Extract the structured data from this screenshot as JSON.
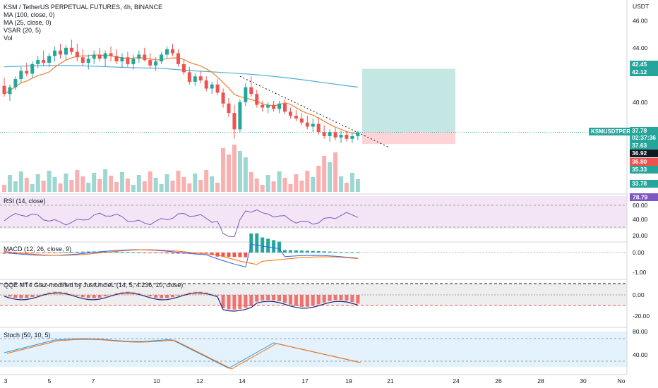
{
  "legend": {
    "title": "KSM / TetherUS PERPETUAL FUTURES, 4h, BINANCE",
    "ma100": "MA (100, close, 0)",
    "ma25": "MA (25, close, 0)",
    "vsar": "VSAR (20, 5)",
    "vol": "Vol"
  },
  "panes": {
    "rsi": "RSI (14, close)",
    "macd": "MACD (12, 26, close, 9)",
    "qqe": "QQE MT4 Glaz-modified by JustUncleL (14, 5, 4.236, 10, close)",
    "stoch": "Stoch (50, 10, 5)"
  },
  "price_axis": {
    "unit": "USDT",
    "ticks": [
      "46.00",
      "44.00",
      "40.00"
    ],
    "tags": [
      {
        "text": "42.45",
        "color": "#26a69a"
      },
      {
        "text": "42.12",
        "color": "#26a69a"
      },
      {
        "text": "37.78",
        "color": "#26a69a"
      },
      {
        "text": "02:37:36",
        "color": "#26a69a"
      },
      {
        "text": "37.63",
        "color": "#26a69a"
      },
      {
        "text": "36.92",
        "color": "#131722"
      },
      {
        "text": "36.80",
        "color": "#ef5350"
      },
      {
        "text": "35.33",
        "color": "#26a69a"
      },
      {
        "text": "33.78",
        "color": "#26a69a"
      }
    ],
    "symbol_tag": "KSMUSDTPERP"
  },
  "rsi_axis": {
    "ticks": [
      "60.00",
      "40.00",
      "20.00"
    ],
    "tag": "78.79"
  },
  "macd_axis": {
    "ticks": [
      "0.00",
      "-1.00"
    ]
  },
  "qqe_axis": {
    "ticks": [
      "0.00",
      "-20.00"
    ]
  },
  "stoch_axis": {
    "ticks": [
      "80.00",
      "40.00"
    ]
  },
  "time_axis": {
    "ticks": [
      "3",
      "5",
      "7",
      "10",
      "12",
      "14",
      "17",
      "19",
      "21",
      "24",
      "26",
      "28",
      "30",
      "No"
    ]
  },
  "colors": {
    "up": "#26a69a",
    "down": "#ef5350",
    "ma100": "#4fb0d4",
    "ma25": "#f57c2e",
    "rsi_bg": "#f3e5f5",
    "stoch_bg": "#e3f2fd",
    "target_zone": "#b2dfdb",
    "stop_zone": "#ffcdd2"
  },
  "chart_data": {
    "type": "candlestick",
    "price_range": [
      33.5,
      47
    ],
    "candles": [
      [
        41.2,
        41.8,
        40.4,
        40.6
      ],
      [
        40.6,
        41.3,
        40.1,
        41.1
      ],
      [
        41.1,
        41.9,
        40.9,
        41.7
      ],
      [
        41.7,
        42.6,
        41.4,
        42.3
      ],
      [
        42.3,
        42.9,
        41.9,
        42.1
      ],
      [
        42.1,
        43.0,
        41.8,
        42.8
      ],
      [
        42.8,
        43.4,
        42.5,
        43.1
      ],
      [
        43.1,
        43.8,
        42.7,
        42.9
      ],
      [
        42.9,
        43.6,
        42.6,
        43.4
      ],
      [
        43.4,
        44.1,
        43.0,
        43.8
      ],
      [
        43.8,
        44.3,
        43.2,
        43.5
      ],
      [
        43.5,
        44.2,
        43.1,
        44.0
      ],
      [
        44.0,
        44.6,
        43.5,
        43.7
      ],
      [
        43.7,
        44.3,
        43.0,
        43.3
      ],
      [
        43.3,
        43.9,
        42.7,
        42.9
      ],
      [
        42.9,
        43.5,
        42.4,
        43.2
      ],
      [
        43.2,
        43.8,
        42.8,
        43.5
      ],
      [
        43.5,
        44.0,
        43.0,
        43.2
      ],
      [
        43.2,
        43.8,
        42.6,
        43.6
      ],
      [
        43.6,
        44.1,
        43.0,
        43.4
      ],
      [
        43.4,
        43.9,
        42.8,
        43.0
      ],
      [
        43.0,
        43.6,
        42.5,
        43.3
      ],
      [
        43.3,
        43.7,
        42.6,
        42.8
      ],
      [
        42.8,
        43.5,
        42.4,
        43.2
      ],
      [
        43.2,
        43.8,
        42.9,
        43.5
      ],
      [
        43.5,
        44.0,
        43.0,
        43.1
      ],
      [
        43.1,
        43.6,
        42.5,
        42.7
      ],
      [
        42.7,
        43.3,
        42.3,
        43.0
      ],
      [
        43.0,
        43.7,
        42.8,
        43.5
      ],
      [
        43.5,
        44.1,
        43.2,
        43.9
      ],
      [
        43.9,
        44.3,
        43.4,
        43.6
      ],
      [
        43.6,
        43.9,
        42.6,
        42.8
      ],
      [
        42.8,
        43.2,
        42.0,
        42.2
      ],
      [
        42.2,
        42.6,
        41.3,
        41.5
      ],
      [
        41.5,
        42.1,
        41.2,
        41.9
      ],
      [
        41.9,
        42.3,
        41.4,
        41.6
      ],
      [
        41.6,
        41.9,
        40.8,
        41.0
      ],
      [
        41.0,
        41.5,
        40.6,
        41.3
      ],
      [
        41.3,
        41.7,
        40.5,
        40.7
      ],
      [
        40.7,
        41.0,
        39.6,
        39.9
      ],
      [
        39.9,
        40.3,
        38.9,
        39.2
      ],
      [
        39.2,
        39.8,
        37.3,
        38.0
      ],
      [
        38.0,
        40.2,
        37.8,
        40.0
      ],
      [
        40.0,
        41.4,
        39.7,
        41.1
      ],
      [
        41.1,
        41.9,
        40.4,
        40.6
      ],
      [
        40.6,
        40.9,
        39.6,
        39.8
      ],
      [
        39.8,
        40.1,
        39.3,
        39.6
      ],
      [
        39.6,
        40.0,
        39.2,
        39.8
      ],
      [
        39.8,
        40.1,
        39.3,
        39.5
      ],
      [
        39.5,
        40.1,
        39.2,
        39.9
      ],
      [
        39.9,
        40.2,
        39.1,
        39.3
      ],
      [
        39.3,
        39.6,
        38.8,
        39.0
      ],
      [
        39.0,
        39.4,
        38.6,
        38.8
      ],
      [
        38.8,
        39.2,
        38.3,
        38.5
      ],
      [
        38.5,
        39.0,
        38.0,
        38.2
      ],
      [
        38.2,
        38.8,
        37.8,
        38.4
      ],
      [
        38.4,
        38.9,
        37.6,
        37.8
      ],
      [
        37.8,
        38.3,
        37.3,
        37.5
      ],
      [
        37.5,
        38.0,
        37.1,
        37.8
      ],
      [
        37.8,
        38.1,
        37.2,
        37.4
      ],
      [
        37.4,
        37.9,
        37.0,
        37.6
      ],
      [
        37.6,
        37.9,
        37.1,
        37.3
      ],
      [
        37.3,
        37.8,
        37.0,
        37.5
      ],
      [
        37.5,
        37.9,
        37.2,
        37.78
      ]
    ],
    "trade_box": {
      "entry": 37.78,
      "target": 42.45,
      "stop": 36.92
    }
  }
}
